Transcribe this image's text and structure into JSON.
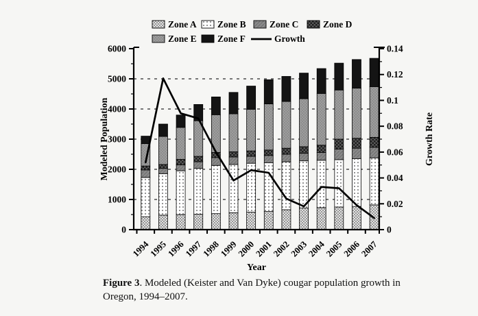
{
  "figure": {
    "caption_label": "Figure 3",
    "caption_text": ".  Modeled (Keister and Van Dyke) cougar population growth in Oregon, 1994–2007."
  },
  "chart_data": {
    "type": "bar",
    "subtype": "stacked-bars-with-line-overlay",
    "title": "",
    "xlabel": "Year",
    "ylabel_left": "Modeled Population",
    "ylabel_right": "Growth Rate",
    "ylim_left": [
      0,
      6000
    ],
    "ylim_right": [
      0,
      0.14
    ],
    "yticks_left": [
      "0",
      "1000",
      "2000",
      "3000",
      "4000",
      "5000",
      "6000"
    ],
    "yticks_right": [
      "0",
      "0.02",
      "0.04",
      "0.06",
      "0.08",
      "0.1",
      "0.12",
      "0.14"
    ],
    "grid": "dashed horizontal gridlines at 1000,2000,3000,4000,5000",
    "legend_position": "top",
    "categories": [
      "1994",
      "1995",
      "1996",
      "1997",
      "1998",
      "1999",
      "2000",
      "2001",
      "2002",
      "2003",
      "2004",
      "2005",
      "2006",
      "2007"
    ],
    "series": [
      {
        "name": "Zone A",
        "fill": "light-dotted",
        "values": [
          430,
          480,
          500,
          510,
          530,
          560,
          580,
          600,
          660,
          715,
          730,
          750,
          770,
          820
        ]
      },
      {
        "name": "Zone B",
        "fill": "white-dotted",
        "values": [
          1300,
          1370,
          1450,
          1520,
          1600,
          1600,
          1620,
          1620,
          1590,
          1565,
          1570,
          1570,
          1580,
          1560
        ]
      },
      {
        "name": "Zone C",
        "fill": "gray-hatch",
        "values": [
          250,
          180,
          200,
          220,
          260,
          250,
          230,
          240,
          250,
          250,
          260,
          350,
          350,
          350
        ]
      },
      {
        "name": "Zone D",
        "fill": "dark-checker",
        "values": [
          130,
          130,
          180,
          180,
          170,
          170,
          180,
          180,
          200,
          220,
          240,
          330,
          330,
          330
        ]
      },
      {
        "name": "Zone E",
        "fill": "medium-gray",
        "values": [
          740,
          930,
          1060,
          1180,
          1250,
          1260,
          1380,
          1530,
          1550,
          1590,
          1715,
          1630,
          1660,
          1680
        ]
      },
      {
        "name": "Zone F",
        "fill": "black",
        "values": [
          250,
          410,
          410,
          540,
          590,
          710,
          770,
          800,
          830,
          850,
          825,
          890,
          950,
          940
        ]
      }
    ],
    "bar_totals": [
      3100,
      3500,
      3800,
      4150,
      4400,
      4550,
      4760,
      4970,
      5080,
      5190,
      5340,
      5520,
      5640,
      5680
    ],
    "line": {
      "name": "Growth",
      "axis": "right",
      "values": [
        0.052,
        0.117,
        0.09,
        0.086,
        0.06,
        0.038,
        0.046,
        0.044,
        0.024,
        0.018,
        0.033,
        0.032,
        0.019,
        0.009
      ]
    },
    "colors": {
      "line": "#000000",
      "bar_outline": "#000000",
      "grid": "#2a2a2a",
      "zone_a_bg": "#e2e2e2",
      "zone_a_dot": "#979797",
      "zone_b_bg": "#ffffff",
      "zone_b_dot": "#3a3a3a",
      "zone_c": "#8a8a8a",
      "zone_c_hatch": "#707070",
      "zone_d_bg": "#5a5a5a",
      "zone_d_check": "#1e1e1e",
      "zone_e_bg": "#9d9d9d",
      "zone_e_check": "#8d8d8d",
      "zone_f": "#141414"
    }
  }
}
